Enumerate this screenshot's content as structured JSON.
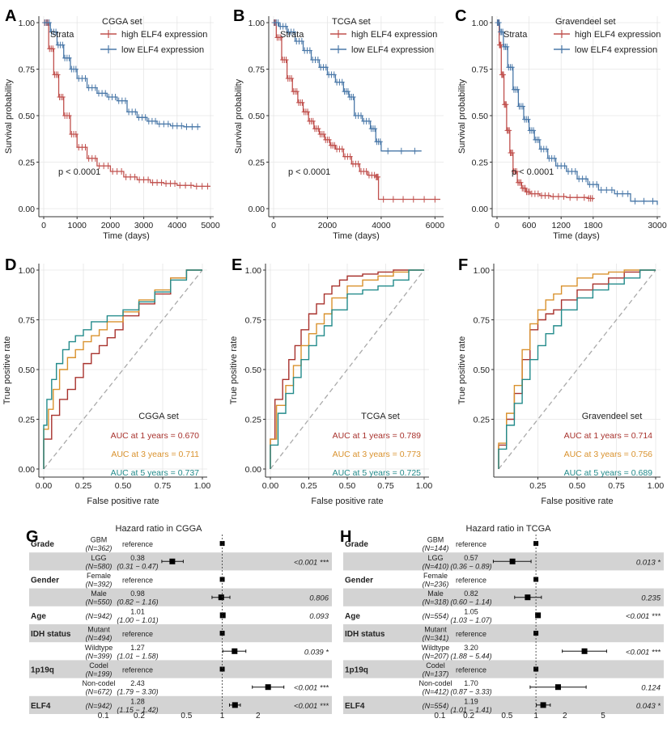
{
  "colors": {
    "high": "#c0504d",
    "low": "#4a78a8",
    "y1": "#a8322d",
    "y3": "#d9922e",
    "y5": "#238b8b",
    "grid": "#e6e6e6",
    "shade": "#d3d3d3"
  },
  "chart_data": [
    {
      "type": "line",
      "panel": "A",
      "title": "CGGA set",
      "xlabel": "Time (days)",
      "ylabel": "Survival probability",
      "xlim": [
        0,
        5000
      ],
      "xticks": [
        0,
        1000,
        2000,
        3000,
        4000,
        5000
      ],
      "ylim": [
        0,
        1
      ],
      "yticks": [
        "0.00",
        "0.25",
        "0.50",
        "0.75",
        "1.00"
      ],
      "legend_title": "Strata",
      "pvalue": "p < 0.0001",
      "series": [
        {
          "name": "high ELF4 expression",
          "key": "high",
          "x": [
            0,
            150,
            300,
            450,
            600,
            800,
            1000,
            1300,
            1600,
            2000,
            2400,
            2800,
            3200,
            3600,
            4000,
            4500,
            5000
          ],
          "y": [
            1,
            0.86,
            0.72,
            0.6,
            0.5,
            0.4,
            0.33,
            0.27,
            0.23,
            0.2,
            0.17,
            0.155,
            0.14,
            0.135,
            0.125,
            0.12,
            0.12
          ]
        },
        {
          "name": "low ELF4 expression",
          "key": "low",
          "x": [
            0,
            200,
            400,
            600,
            800,
            1000,
            1300,
            1600,
            1900,
            2200,
            2500,
            2800,
            3100,
            3400,
            3800,
            4200,
            4700
          ],
          "y": [
            1,
            0.95,
            0.88,
            0.81,
            0.75,
            0.7,
            0.65,
            0.62,
            0.6,
            0.58,
            0.52,
            0.49,
            0.47,
            0.455,
            0.445,
            0.44,
            0.44
          ]
        }
      ]
    },
    {
      "type": "line",
      "panel": "B",
      "title": "TCGA set",
      "xlabel": "Time (days)",
      "ylabel": "Survival probability",
      "xlim": [
        0,
        6200
      ],
      "xticks": [
        0,
        2000,
        4000,
        6000
      ],
      "ylim": [
        0,
        1
      ],
      "yticks": [
        "0.00",
        "0.25",
        "0.50",
        "0.75",
        "1.00"
      ],
      "legend_title": "Strata",
      "pvalue": "p < 0.0001",
      "series": [
        {
          "name": "high ELF4 expression",
          "key": "high",
          "x": [
            0,
            100,
            300,
            500,
            700,
            900,
            1100,
            1300,
            1500,
            1700,
            1900,
            2100,
            2300,
            2600,
            2900,
            3200,
            3500,
            3800,
            3900,
            5000,
            6200
          ],
          "y": [
            1,
            0.92,
            0.8,
            0.7,
            0.63,
            0.57,
            0.52,
            0.47,
            0.43,
            0.4,
            0.37,
            0.34,
            0.32,
            0.28,
            0.24,
            0.2,
            0.18,
            0.17,
            0.05,
            0.05,
            0.05
          ]
        },
        {
          "name": "low ELF4 expression",
          "key": "low",
          "x": [
            0,
            200,
            500,
            800,
            1100,
            1400,
            1700,
            2000,
            2300,
            2600,
            2800,
            3000,
            3300,
            3600,
            3800,
            4000,
            5500
          ],
          "y": [
            1,
            0.98,
            0.95,
            0.9,
            0.85,
            0.8,
            0.76,
            0.72,
            0.68,
            0.63,
            0.6,
            0.5,
            0.47,
            0.43,
            0.36,
            0.31,
            0.31
          ]
        }
      ]
    },
    {
      "type": "line",
      "panel": "C",
      "title": "Gravendeel  set",
      "xlabel": "Time (days)",
      "ylabel": "Survival probability",
      "xlim": [
        0,
        3000
      ],
      "xticks": [
        0,
        600,
        1200,
        1800,
        3000
      ],
      "ylim": [
        0,
        1
      ],
      "yticks": [
        "0.00",
        "0.25",
        "0.50",
        "0.75",
        "1.00"
      ],
      "legend_title": "Strata",
      "pvalue": "p < 0.0001",
      "series": [
        {
          "name": "high ELF4 expression",
          "key": "high",
          "x": [
            0,
            40,
            80,
            130,
            180,
            240,
            300,
            380,
            460,
            540,
            620,
            800,
            1000,
            1300,
            1700,
            1800
          ],
          "y": [
            1,
            0.88,
            0.72,
            0.56,
            0.42,
            0.3,
            0.2,
            0.14,
            0.11,
            0.09,
            0.08,
            0.07,
            0.065,
            0.06,
            0.055,
            0.05
          ]
        },
        {
          "name": "low ELF4 expression",
          "key": "low",
          "x": [
            0,
            50,
            120,
            200,
            300,
            400,
            500,
            600,
            700,
            800,
            950,
            1100,
            1300,
            1500,
            1700,
            1900,
            2200,
            2500,
            3000
          ],
          "y": [
            1,
            0.95,
            0.87,
            0.76,
            0.64,
            0.55,
            0.48,
            0.42,
            0.37,
            0.32,
            0.27,
            0.23,
            0.2,
            0.16,
            0.13,
            0.1,
            0.08,
            0.04,
            0.02
          ]
        }
      ]
    },
    {
      "type": "line",
      "panel": "D",
      "title": "CGGA set",
      "xlabel": "False positive rate",
      "ylabel": "True positive rate",
      "xlim": [
        0,
        1
      ],
      "ylim": [
        0,
        1
      ],
      "ticks": [
        "0.00",
        "0.25",
        "0.50",
        "0.75",
        "1.00"
      ],
      "series": [
        {
          "name": "AUC at 1 years = 0.670",
          "key": "y1",
          "x": [
            0,
            0.05,
            0.1,
            0.15,
            0.2,
            0.25,
            0.3,
            0.35,
            0.4,
            0.45,
            0.5,
            0.6,
            0.7,
            0.8,
            0.9,
            1
          ],
          "y": [
            0,
            0.15,
            0.27,
            0.35,
            0.4,
            0.46,
            0.53,
            0.58,
            0.62,
            0.66,
            0.7,
            0.77,
            0.83,
            0.88,
            0.96,
            1
          ]
        },
        {
          "name": "AUC at 3 years = 0.711",
          "key": "y3",
          "x": [
            0,
            0.03,
            0.06,
            0.1,
            0.15,
            0.2,
            0.25,
            0.3,
            0.35,
            0.4,
            0.5,
            0.6,
            0.7,
            0.8,
            0.9,
            1
          ],
          "y": [
            0,
            0.2,
            0.3,
            0.4,
            0.5,
            0.56,
            0.6,
            0.64,
            0.67,
            0.7,
            0.74,
            0.79,
            0.85,
            0.9,
            0.96,
            1
          ]
        },
        {
          "name": "AUC at 5 years = 0.737",
          "key": "y5",
          "x": [
            0,
            0.02,
            0.05,
            0.08,
            0.12,
            0.16,
            0.2,
            0.25,
            0.3,
            0.4,
            0.5,
            0.6,
            0.7,
            0.8,
            0.9,
            1
          ],
          "y": [
            0,
            0.22,
            0.35,
            0.45,
            0.53,
            0.6,
            0.64,
            0.67,
            0.7,
            0.74,
            0.77,
            0.8,
            0.84,
            0.89,
            0.95,
            1
          ]
        }
      ]
    },
    {
      "type": "line",
      "panel": "E",
      "title": "TCGA set",
      "xlabel": "False positive rate",
      "ylabel": "True positive rate",
      "xlim": [
        0,
        1
      ],
      "ylim": [
        0,
        1
      ],
      "ticks": [
        "0.00",
        "0.25",
        "0.50",
        "0.75",
        "1.00"
      ],
      "series": [
        {
          "name": "AUC at 1 years = 0.789",
          "key": "y1",
          "x": [
            0,
            0.03,
            0.08,
            0.12,
            0.16,
            0.2,
            0.25,
            0.3,
            0.35,
            0.4,
            0.45,
            0.5,
            0.6,
            0.7,
            0.8,
            0.9,
            1
          ],
          "y": [
            0,
            0.15,
            0.35,
            0.45,
            0.55,
            0.62,
            0.7,
            0.78,
            0.83,
            0.88,
            0.92,
            0.95,
            0.97,
            0.98,
            0.99,
            1,
            1
          ]
        },
        {
          "name": "AUC at 3 years = 0.773",
          "key": "y3",
          "x": [
            0,
            0.04,
            0.1,
            0.15,
            0.2,
            0.25,
            0.3,
            0.35,
            0.4,
            0.5,
            0.6,
            0.7,
            0.8,
            0.9,
            1
          ],
          "y": [
            0,
            0.15,
            0.32,
            0.42,
            0.52,
            0.62,
            0.68,
            0.73,
            0.78,
            0.86,
            0.92,
            0.95,
            0.97,
            0.99,
            1
          ]
        },
        {
          "name": "AUC at 5 years = 0.725",
          "key": "y5",
          "x": [
            0,
            0.05,
            0.1,
            0.15,
            0.2,
            0.25,
            0.3,
            0.35,
            0.4,
            0.5,
            0.6,
            0.7,
            0.8,
            0.9,
            1
          ],
          "y": [
            0,
            0.12,
            0.28,
            0.38,
            0.46,
            0.55,
            0.62,
            0.67,
            0.72,
            0.8,
            0.88,
            0.9,
            0.92,
            0.95,
            1
          ]
        }
      ]
    },
    {
      "type": "line",
      "panel": "F",
      "title": "Gravendeel set",
      "xlabel": "False positive rate",
      "ylabel": "True positive rate",
      "xlim": [
        0,
        1
      ],
      "ylim": [
        0,
        1
      ],
      "ticks": [
        "0.25",
        "0.50",
        "0.75",
        "1.00"
      ],
      "series": [
        {
          "name": "AUC at 1 years = 0.714",
          "key": "y1",
          "x": [
            0,
            0.05,
            0.1,
            0.15,
            0.2,
            0.25,
            0.3,
            0.35,
            0.4,
            0.5,
            0.6,
            0.7,
            0.8,
            0.9,
            1
          ],
          "y": [
            0,
            0.12,
            0.25,
            0.38,
            0.55,
            0.7,
            0.75,
            0.78,
            0.8,
            0.85,
            0.9,
            0.93,
            0.96,
            0.99,
            1
          ]
        },
        {
          "name": "AUC at 3 years = 0.756",
          "key": "y3",
          "x": [
            0,
            0.05,
            0.1,
            0.15,
            0.2,
            0.25,
            0.3,
            0.35,
            0.4,
            0.5,
            0.6,
            0.7,
            0.8,
            0.9,
            1
          ],
          "y": [
            0,
            0.13,
            0.28,
            0.42,
            0.6,
            0.73,
            0.8,
            0.85,
            0.88,
            0.92,
            0.96,
            0.98,
            0.99,
            1,
            1
          ]
        },
        {
          "name": "AUC at 5 years = 0.689",
          "key": "y5",
          "x": [
            0,
            0.05,
            0.1,
            0.15,
            0.2,
            0.25,
            0.3,
            0.35,
            0.4,
            0.5,
            0.6,
            0.7,
            0.8,
            0.9,
            1
          ],
          "y": [
            0,
            0.1,
            0.22,
            0.33,
            0.45,
            0.55,
            0.62,
            0.68,
            0.72,
            0.8,
            0.86,
            0.9,
            0.93,
            0.96,
            1
          ]
        }
      ]
    },
    {
      "type": "scatter",
      "panel": "G",
      "title": "Hazard ratio in CGGA",
      "xaxis": "log",
      "xticks": [
        0.1,
        0.2,
        0.5,
        1,
        2
      ],
      "xlim": [
        0.07,
        3.7
      ],
      "rows": [
        {
          "var": "Grade",
          "level": "GBM",
          "n": "(N=362)",
          "hr": "reference",
          "ci": "",
          "p": "",
          "hr_val": 1,
          "lo": null,
          "hi": null
        },
        {
          "var": "",
          "level": "LGG",
          "n": "(N=580)",
          "hr": "0.38",
          "ci": "(0.31 − 0.47)",
          "p": "<0.001 ***",
          "hr_val": 0.38,
          "lo": 0.31,
          "hi": 0.47
        },
        {
          "var": "Gender",
          "level": "Female",
          "n": "(N=392)",
          "hr": "reference",
          "ci": "",
          "p": "",
          "hr_val": 1,
          "lo": null,
          "hi": null
        },
        {
          "var": "",
          "level": "Male",
          "n": "(N=550)",
          "hr": "0.98",
          "ci": "(0.82 − 1.16)",
          "p": "0.806",
          "hr_val": 0.98,
          "lo": 0.82,
          "hi": 1.16
        },
        {
          "var": "Age",
          "level": "",
          "n": "(N=942)",
          "hr": "1.01",
          "ci": "(1.00 − 1.01)",
          "p": "0.093",
          "hr_val": 1.01,
          "lo": 1.0,
          "hi": 1.01
        },
        {
          "var": "IDH status",
          "level": "Mutant",
          "n": "(N=494)",
          "hr": "reference",
          "ci": "",
          "p": "",
          "hr_val": 1,
          "lo": null,
          "hi": null
        },
        {
          "var": "",
          "level": "Wildtype",
          "n": "(N=399)",
          "hr": "1.27",
          "ci": "(1.01 − 1.58)",
          "p": "0.039 *",
          "hr_val": 1.27,
          "lo": 1.01,
          "hi": 1.58
        },
        {
          "var": "1p19q",
          "level": "Codel",
          "n": "(N=199)",
          "hr": "reference",
          "ci": "",
          "p": "",
          "hr_val": 1,
          "lo": null,
          "hi": null
        },
        {
          "var": "",
          "level": "Non-codel",
          "n": "(N=672)",
          "hr": "2.43",
          "ci": "(1.79 − 3.30)",
          "p": "<0.001 ***",
          "hr_val": 2.43,
          "lo": 1.79,
          "hi": 3.3
        },
        {
          "var": "ELF4",
          "level": "",
          "n": "(N=942)",
          "hr": "1.28",
          "ci": "(1.15 − 1.42)",
          "p": "<0.001 ***",
          "hr_val": 1.28,
          "lo": 1.15,
          "hi": 1.42
        }
      ]
    },
    {
      "type": "scatter",
      "panel": "H",
      "title": "Hazard ratio in TCGA",
      "xaxis": "log",
      "xticks": [
        0.1,
        0.2,
        0.5,
        1,
        2,
        5
      ],
      "xlim": [
        0.07,
        7.8
      ],
      "rows": [
        {
          "var": "Grade",
          "level": "GBM",
          "n": "(N=144)",
          "hr": "reference",
          "ci": "",
          "p": "",
          "hr_val": 1,
          "lo": null,
          "hi": null
        },
        {
          "var": "",
          "level": "LGG",
          "n": "(N=410)",
          "hr": "0.57",
          "ci": "(0.36 − 0.89)",
          "p": "0.013 *",
          "hr_val": 0.57,
          "lo": 0.36,
          "hi": 0.89
        },
        {
          "var": "Gender",
          "level": "Female",
          "n": "(N=236)",
          "hr": "reference",
          "ci": "",
          "p": "",
          "hr_val": 1,
          "lo": null,
          "hi": null
        },
        {
          "var": "",
          "level": "Male",
          "n": "(N=318)",
          "hr": "0.82",
          "ci": "(0.60 − 1.14)",
          "p": "0.235",
          "hr_val": 0.82,
          "lo": 0.6,
          "hi": 1.14
        },
        {
          "var": "Age",
          "level": "",
          "n": "(N=554)",
          "hr": "1.05",
          "ci": "(1.03 − 1.07)",
          "p": "<0.001 ***",
          "hr_val": 1.05,
          "lo": 1.03,
          "hi": 1.07
        },
        {
          "var": "IDH status",
          "level": "Mutant",
          "n": "(N=341)",
          "hr": "reference",
          "ci": "",
          "p": "",
          "hr_val": 1,
          "lo": null,
          "hi": null
        },
        {
          "var": "",
          "level": "Wildtype",
          "n": "(N=207)",
          "hr": "3.20",
          "ci": "(1.88 − 5.44)",
          "p": "<0.001 ***",
          "hr_val": 3.2,
          "lo": 1.88,
          "hi": 5.44
        },
        {
          "var": "1p19q",
          "level": "Codel",
          "n": "(N=137)",
          "hr": "reference",
          "ci": "",
          "p": "",
          "hr_val": 1,
          "lo": null,
          "hi": null
        },
        {
          "var": "",
          "level": "Non-codel",
          "n": "(N=412)",
          "hr": "1.70",
          "ci": "(0.87 − 3.33)",
          "p": "0.124",
          "hr_val": 1.7,
          "lo": 0.87,
          "hi": 3.33
        },
        {
          "var": "ELF4",
          "level": "",
          "n": "(N=554)",
          "hr": "1.19",
          "ci": "(1.01 − 1.41)",
          "p": "0.043 *",
          "hr_val": 1.19,
          "lo": 1.01,
          "hi": 1.41
        }
      ]
    }
  ]
}
